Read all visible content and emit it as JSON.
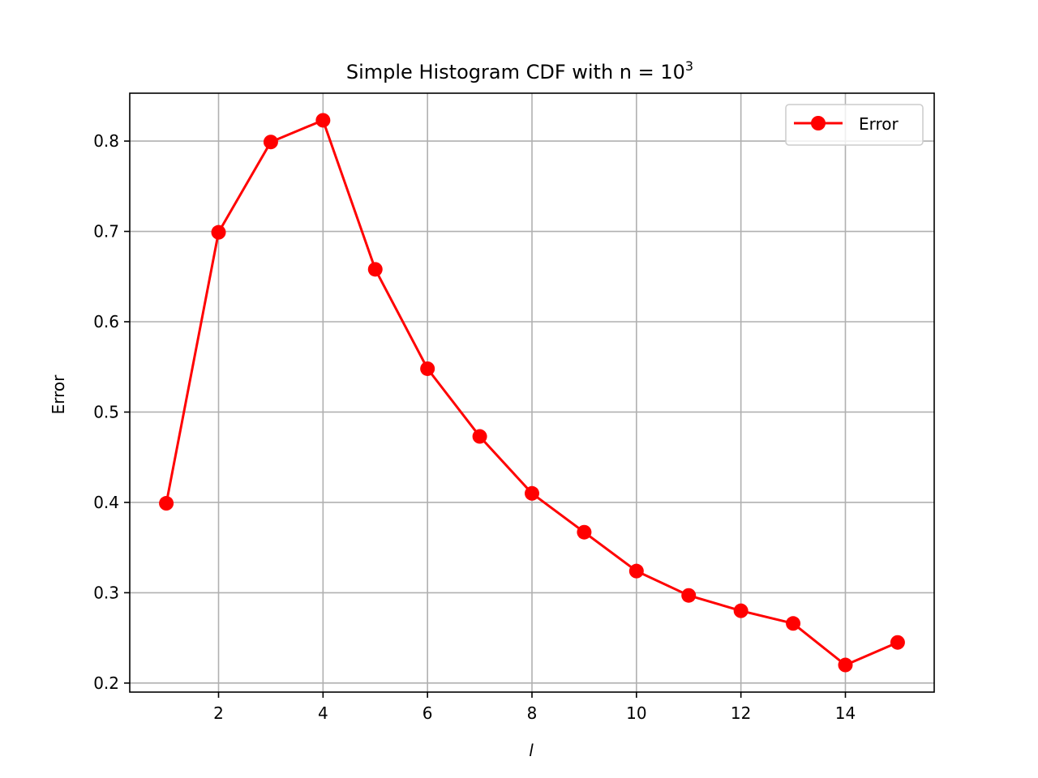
{
  "chart_data": {
    "type": "line",
    "title": "Simple Histogram CDF with n = 10",
    "title_exponent": "3",
    "xlabel": "l",
    "ylabel": "Error",
    "xlim": [
      0.3,
      15.7
    ],
    "ylim": [
      0.19,
      0.853
    ],
    "xticks": [
      2,
      4,
      6,
      8,
      10,
      12,
      14
    ],
    "yticks": [
      0.2,
      0.3,
      0.4,
      0.5,
      0.6,
      0.7,
      0.8
    ],
    "grid": true,
    "legend_position": "top-right",
    "series": [
      {
        "name": "Error",
        "color": "#ff0000",
        "marker": "circle",
        "x": [
          1,
          2,
          3,
          4,
          5,
          6,
          7,
          8,
          9,
          10,
          11,
          12,
          13,
          14,
          15
        ],
        "values": [
          0.399,
          0.699,
          0.799,
          0.823,
          0.658,
          0.548,
          0.473,
          0.41,
          0.367,
          0.324,
          0.297,
          0.28,
          0.266,
          0.22,
          0.245
        ]
      }
    ]
  }
}
